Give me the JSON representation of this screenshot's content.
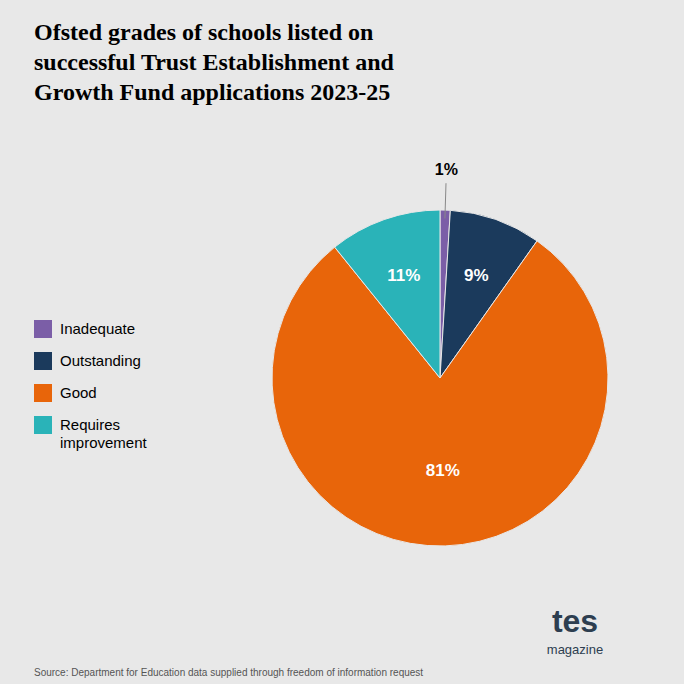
{
  "chart_data": {
    "type": "pie",
    "title": "Ofsted grades of schools listed on\nsuccessful Trust Establishment and\nGrowth Fund applications 2023-25",
    "categories": [
      "Inadequate",
      "Outstanding",
      "Good",
      "Requires\nimprovement"
    ],
    "values": [
      1,
      9,
      81,
      11
    ],
    "value_labels": [
      "1%",
      "9%",
      "81%",
      "11%"
    ],
    "colors": [
      "#7b5ea7",
      "#1b3a5c",
      "#e8650a",
      "#2ab3b8"
    ],
    "data_labels": true,
    "legend": "left",
    "annotations": [
      "Source: Department for Education data supplied through freedom of information request",
      "tes",
      "magazine"
    ]
  }
}
